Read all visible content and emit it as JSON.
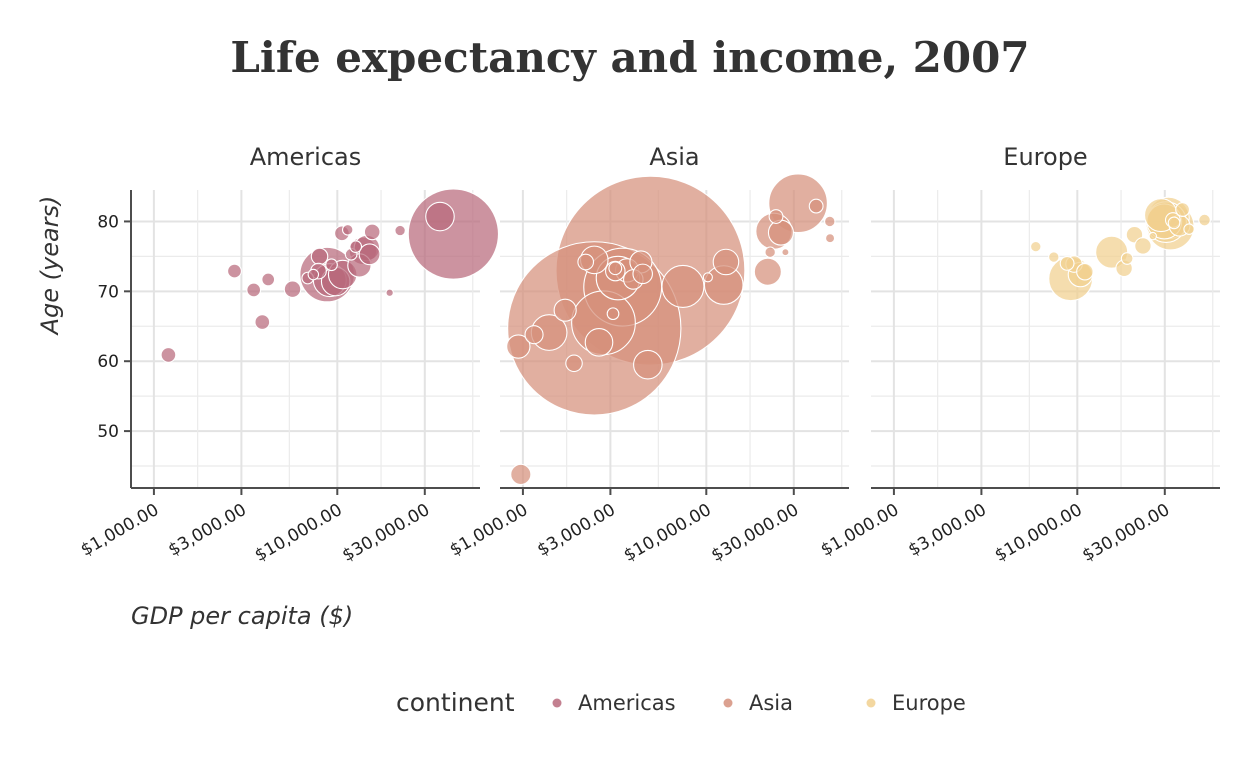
{
  "chart_data": {
    "type": "scatter",
    "title": "Life expectancy and income, 2007",
    "xlabel": "GDP per capita ($)",
    "ylabel": "Age (years)",
    "x_scale": "log",
    "xlim": [
      750,
      60000
    ],
    "ylim": [
      42,
      84.5
    ],
    "x_ticks": [
      1000,
      3000,
      10000,
      30000
    ],
    "x_tick_labels": [
      "$1,000.00",
      "$3,000.00",
      "$10,000.00",
      "$30,000.00"
    ],
    "y_ticks": [
      50,
      60,
      70,
      80
    ],
    "y_tick_labels": [
      "50",
      "60",
      "70",
      "80"
    ],
    "grid": true,
    "legend": {
      "title": "continent",
      "position": "bottom",
      "entries": [
        "Americas",
        "Asia",
        "Europe"
      ]
    },
    "colors": {
      "Americas": "#B86A7C",
      "Asia": "#D5907C",
      "Europe": "#F1D08F"
    },
    "facets": [
      {
        "name": "Americas",
        "color": "#B86A7C",
        "points": [
          {
            "x": 1200,
            "y": 60.9,
            "pop": 8
          },
          {
            "x": 2750,
            "y": 72.9,
            "pop": 7
          },
          {
            "x": 3500,
            "y": 70.2,
            "pop": 7
          },
          {
            "x": 3900,
            "y": 65.6,
            "pop": 8
          },
          {
            "x": 4200,
            "y": 71.7,
            "pop": 6
          },
          {
            "x": 5700,
            "y": 70.3,
            "pop": 10
          },
          {
            "x": 6900,
            "y": 71.9,
            "pop": 5
          },
          {
            "x": 7400,
            "y": 72.4,
            "pop": 4
          },
          {
            "x": 7900,
            "y": 72.9,
            "pop": 9
          },
          {
            "x": 8000,
            "y": 75.0,
            "pop": 10
          },
          {
            "x": 8800,
            "y": 72.4,
            "pop": 110
          },
          {
            "x": 9100,
            "y": 71.6,
            "pop": 40
          },
          {
            "x": 9300,
            "y": 73.8,
            "pop": 5
          },
          {
            "x": 9800,
            "y": 71.4,
            "pop": 30
          },
          {
            "x": 10700,
            "y": 72.4,
            "pop": 30
          },
          {
            "x": 10600,
            "y": 78.3,
            "pop": 8
          },
          {
            "x": 11400,
            "y": 78.8,
            "pop": 4
          },
          {
            "x": 11900,
            "y": 75.3,
            "pop": 5
          },
          {
            "x": 12600,
            "y": 76.4,
            "pop": 5
          },
          {
            "x": 13200,
            "y": 73.7,
            "pop": 20
          },
          {
            "x": 13800,
            "y": 75.8,
            "pop": 28
          },
          {
            "x": 14500,
            "y": 76.2,
            "pop": 24
          },
          {
            "x": 15000,
            "y": 75.3,
            "pop": 16
          },
          {
            "x": 15500,
            "y": 78.5,
            "pop": 9
          },
          {
            "x": 19300,
            "y": 69.8,
            "pop": 2
          },
          {
            "x": 22000,
            "y": 78.7,
            "pop": 4
          },
          {
            "x": 36300,
            "y": 80.7,
            "pop": 30
          },
          {
            "x": 42950,
            "y": 78.2,
            "pop": 301
          }
        ]
      },
      {
        "name": "Asia",
        "color": "#D5907C",
        "points": [
          {
            "x": 974,
            "y": 43.8,
            "pop": 15
          },
          {
            "x": 944,
            "y": 62.1,
            "pop": 20
          },
          {
            "x": 1150,
            "y": 63.8,
            "pop": 12
          },
          {
            "x": 1390,
            "y": 64.1,
            "pop": 47
          },
          {
            "x": 1700,
            "y": 67.3,
            "pop": 18
          },
          {
            "x": 1900,
            "y": 59.7,
            "pop": 10
          },
          {
            "x": 2200,
            "y": 74.2,
            "pop": 9
          },
          {
            "x": 2450,
            "y": 74.5,
            "pop": 28
          },
          {
            "x": 2600,
            "y": 62.7,
            "pop": 28
          },
          {
            "x": 2450,
            "y": 64.7,
            "pop": 1110
          },
          {
            "x": 2750,
            "y": 65.5,
            "pop": 150
          },
          {
            "x": 3100,
            "y": 66.8,
            "pop": 5
          },
          {
            "x": 3190,
            "y": 73.3,
            "pop": 6
          },
          {
            "x": 3190,
            "y": 72.9,
            "pop": 14
          },
          {
            "x": 3300,
            "y": 71.9,
            "pop": 70
          },
          {
            "x": 3500,
            "y": 70.6,
            "pop": 224
          },
          {
            "x": 3700,
            "y": 73.0,
            "pop": 20
          },
          {
            "x": 4000,
            "y": 71.7,
            "pop": 14
          },
          {
            "x": 4400,
            "y": 74.2,
            "pop": 18
          },
          {
            "x": 4500,
            "y": 72.5,
            "pop": 14
          },
          {
            "x": 4800,
            "y": 59.5,
            "pop": 30
          },
          {
            "x": 4959,
            "y": 72.96,
            "pop": 1319
          },
          {
            "x": 7458,
            "y": 70.7,
            "pop": 65
          },
          {
            "x": 10200,
            "y": 72.0,
            "pop": 3
          },
          {
            "x": 12450,
            "y": 70.9,
            "pop": 55
          },
          {
            "x": 12800,
            "y": 74.2,
            "pop": 24
          },
          {
            "x": 21654,
            "y": 72.8,
            "pop": 27
          },
          {
            "x": 22300,
            "y": 75.6,
            "pop": 4
          },
          {
            "x": 23348,
            "y": 78.6,
            "pop": 48
          },
          {
            "x": 24000,
            "y": 80.7,
            "pop": 7
          },
          {
            "x": 25523,
            "y": 78.4,
            "pop": 23
          },
          {
            "x": 27000,
            "y": 75.6,
            "pop": 1
          },
          {
            "x": 31656,
            "y": 82.6,
            "pop": 127
          },
          {
            "x": 39725,
            "y": 82.2,
            "pop": 7
          },
          {
            "x": 47143,
            "y": 80.0,
            "pop": 4
          },
          {
            "x": 47300,
            "y": 77.6,
            "pop": 3
          }
        ]
      },
      {
        "name": "Europe",
        "color": "#F1D08F",
        "points": [
          {
            "x": 5937,
            "y": 76.4,
            "pop": 4
          },
          {
            "x": 7446,
            "y": 74.9,
            "pop": 4
          },
          {
            "x": 8800,
            "y": 74.0,
            "pop": 7
          },
          {
            "x": 9200,
            "y": 71.8,
            "pop": 71
          },
          {
            "x": 9600,
            "y": 73.9,
            "pop": 10
          },
          {
            "x": 10400,
            "y": 72.4,
            "pop": 22
          },
          {
            "x": 11000,
            "y": 72.8,
            "pop": 10
          },
          {
            "x": 15400,
            "y": 75.6,
            "pop": 38
          },
          {
            "x": 18000,
            "y": 73.3,
            "pop": 10
          },
          {
            "x": 18700,
            "y": 74.7,
            "pop": 5
          },
          {
            "x": 20500,
            "y": 78.1,
            "pop": 10
          },
          {
            "x": 22800,
            "y": 76.5,
            "pop": 10
          },
          {
            "x": 25800,
            "y": 77.9,
            "pop": 2
          },
          {
            "x": 28600,
            "y": 80.9,
            "pop": 40
          },
          {
            "x": 29800,
            "y": 80.0,
            "pop": 45
          },
          {
            "x": 30500,
            "y": 79.9,
            "pop": 61
          },
          {
            "x": 31400,
            "y": 80.5,
            "pop": 64
          },
          {
            "x": 32200,
            "y": 79.3,
            "pop": 82
          },
          {
            "x": 33200,
            "y": 80.2,
            "pop": 8
          },
          {
            "x": 33700,
            "y": 79.8,
            "pop": 5
          },
          {
            "x": 36100,
            "y": 79.4,
            "pop": 16
          },
          {
            "x": 37500,
            "y": 81.7,
            "pop": 7
          },
          {
            "x": 40700,
            "y": 78.9,
            "pop": 4
          },
          {
            "x": 49400,
            "y": 80.2,
            "pop": 5
          }
        ]
      }
    ]
  }
}
